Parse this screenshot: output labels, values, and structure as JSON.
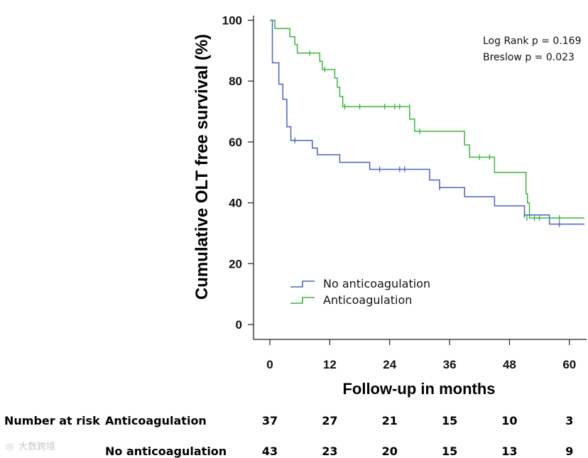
{
  "chart_data": {
    "type": "line",
    "subtype": "kaplan-meier",
    "title": "",
    "xlabel": "Follow-up in months",
    "ylabel": "Cumulative OLT free survival (%)",
    "xlim": [
      0,
      63
    ],
    "ylim": [
      0,
      100
    ],
    "xticks": [
      0,
      12,
      24,
      36,
      48,
      60
    ],
    "yticks": [
      0,
      20,
      40,
      60,
      80,
      100
    ],
    "annotations": [
      "Log Rank p = 0.169",
      "Breslow p = 0.023"
    ],
    "legend_position": "lower-left",
    "series": [
      {
        "name": "No anticoagulation",
        "color": "#4a62c4",
        "steps": [
          [
            0,
            100
          ],
          [
            0.5,
            86
          ],
          [
            1.8,
            79
          ],
          [
            2.6,
            74
          ],
          [
            3.4,
            65
          ],
          [
            4.2,
            60.5
          ],
          [
            8.5,
            58
          ],
          [
            9.5,
            55.8
          ],
          [
            14,
            53.3
          ],
          [
            20,
            51
          ],
          [
            29,
            51
          ],
          [
            32,
            47.5
          ],
          [
            34,
            45
          ],
          [
            39,
            42
          ],
          [
            45,
            39
          ],
          [
            51,
            36
          ],
          [
            56,
            33
          ],
          [
            63,
            33
          ]
        ],
        "censor": [
          [
            5,
            60.5
          ],
          [
            22,
            51
          ],
          [
            26,
            51
          ],
          [
            27,
            51
          ],
          [
            34,
            45
          ],
          [
            51,
            36
          ],
          [
            58,
            33
          ]
        ]
      },
      {
        "name": "Anticoagulation",
        "color": "#3cb63c",
        "steps": [
          [
            0,
            100
          ],
          [
            1,
            97.3
          ],
          [
            4,
            94.6
          ],
          [
            5,
            92
          ],
          [
            5.5,
            89.2
          ],
          [
            10,
            86.5
          ],
          [
            10.5,
            83.8
          ],
          [
            13,
            81
          ],
          [
            13.5,
            78
          ],
          [
            14,
            75
          ],
          [
            14.6,
            71.6
          ],
          [
            28,
            67.5
          ],
          [
            29,
            63.5
          ],
          [
            39,
            59
          ],
          [
            40,
            55
          ],
          [
            45,
            50
          ],
          [
            51.3,
            43
          ],
          [
            51.6,
            40
          ],
          [
            52,
            35
          ],
          [
            63,
            35
          ]
        ],
        "censor": [
          [
            8,
            89.2
          ],
          [
            11,
            83.8
          ],
          [
            15,
            71.6
          ],
          [
            18,
            71.6
          ],
          [
            23,
            71.6
          ],
          [
            25,
            71.6
          ],
          [
            26,
            71.6
          ],
          [
            28,
            71.6
          ],
          [
            30,
            63.5
          ],
          [
            42,
            55
          ],
          [
            44,
            55
          ],
          [
            51.5,
            35
          ],
          [
            53,
            35
          ],
          [
            54,
            35
          ],
          [
            58,
            35
          ]
        ]
      }
    ],
    "risk_table": {
      "heading": "Number at risk",
      "times": [
        0,
        12,
        24,
        36,
        48,
        60
      ],
      "rows": [
        {
          "label": "Anticoagulation",
          "values": [
            "37",
            "27",
            "21",
            "15",
            "10",
            "3"
          ]
        },
        {
          "label": "No anticoagulation",
          "values": [
            "43",
            "23",
            "20",
            "15",
            "13",
            "9"
          ]
        }
      ]
    }
  },
  "watermark": "大数跨境"
}
